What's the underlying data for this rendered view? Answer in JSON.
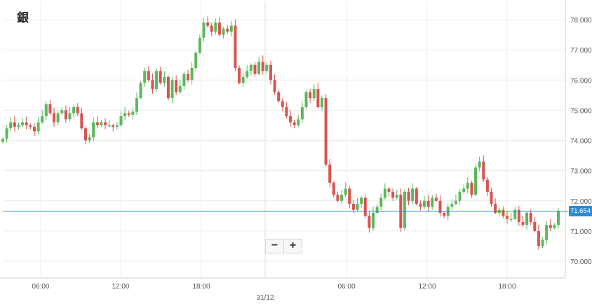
{
  "title": "銀",
  "zoom": {
    "minus": "−",
    "plus": "+"
  },
  "current_price": "71.654",
  "colors": {
    "up": "#5cb85c",
    "down": "#d9534f",
    "grid": "#ececec",
    "price_line": "#2a8bd6",
    "axis_text": "#555555"
  },
  "chart_data": {
    "type": "candlestick",
    "title": "銀",
    "ylim": [
      69.5,
      78.2
    ],
    "y_ticks": [
      "78.000",
      "77.000",
      "76.000",
      "75.000",
      "74.000",
      "73.000",
      "72.000",
      "71.000",
      "70.000"
    ],
    "x_ticks": [
      "06:00",
      "12:00",
      "18:00",
      "31/12",
      "06:00",
      "12:00",
      "18:00"
    ],
    "last_price": 71.654,
    "close_series": [
      74.05,
      74.4,
      74.6,
      74.45,
      74.5,
      74.6,
      74.5,
      74.45,
      74.3,
      74.6,
      74.8,
      75.2,
      74.9,
      74.6,
      74.9,
      75.0,
      74.7,
      74.9,
      75.1,
      74.9,
      74.4,
      74.0,
      74.1,
      74.6,
      74.5,
      74.6,
      74.5,
      74.5,
      74.45,
      74.5,
      74.8,
      74.9,
      74.85,
      74.95,
      75.4,
      75.9,
      76.3,
      76.0,
      75.7,
      76.3,
      75.9,
      76.1,
      75.4,
      76.0,
      75.6,
      75.8,
      76.2,
      76.0,
      76.4,
      76.9,
      77.4,
      77.9,
      77.8,
      77.6,
      77.9,
      77.5,
      77.7,
      77.6,
      77.8,
      76.4,
      75.9,
      76.1,
      76.3,
      76.5,
      76.2,
      76.6,
      76.3,
      76.5,
      76.0,
      75.6,
      75.3,
      75.1,
      74.8,
      74.6,
      74.5,
      74.7,
      75.1,
      75.6,
      75.4,
      75.7,
      75.1,
      75.4,
      73.2,
      72.6,
      72.2,
      72.0,
      72.2,
      72.4,
      71.9,
      71.7,
      71.9,
      72.1,
      71.5,
      71.1,
      71.6,
      71.8,
      72.1,
      72.4,
      72.3,
      72.1,
      72.2,
      71.1,
      72.3,
      72.0,
      72.4,
      71.9,
      71.8,
      72.0,
      71.8,
      72.1,
      72.0,
      71.6,
      71.5,
      71.8,
      71.9,
      72.0,
      72.3,
      72.4,
      72.6,
      72.2,
      73.1,
      73.3,
      72.7,
      72.3,
      71.9,
      71.6,
      71.7,
      71.5,
      71.4,
      71.4,
      71.7,
      71.3,
      71.2,
      71.6,
      71.3,
      71.0,
      70.5,
      70.7,
      71.2,
      71.1,
      71.2,
      71.654
    ]
  }
}
